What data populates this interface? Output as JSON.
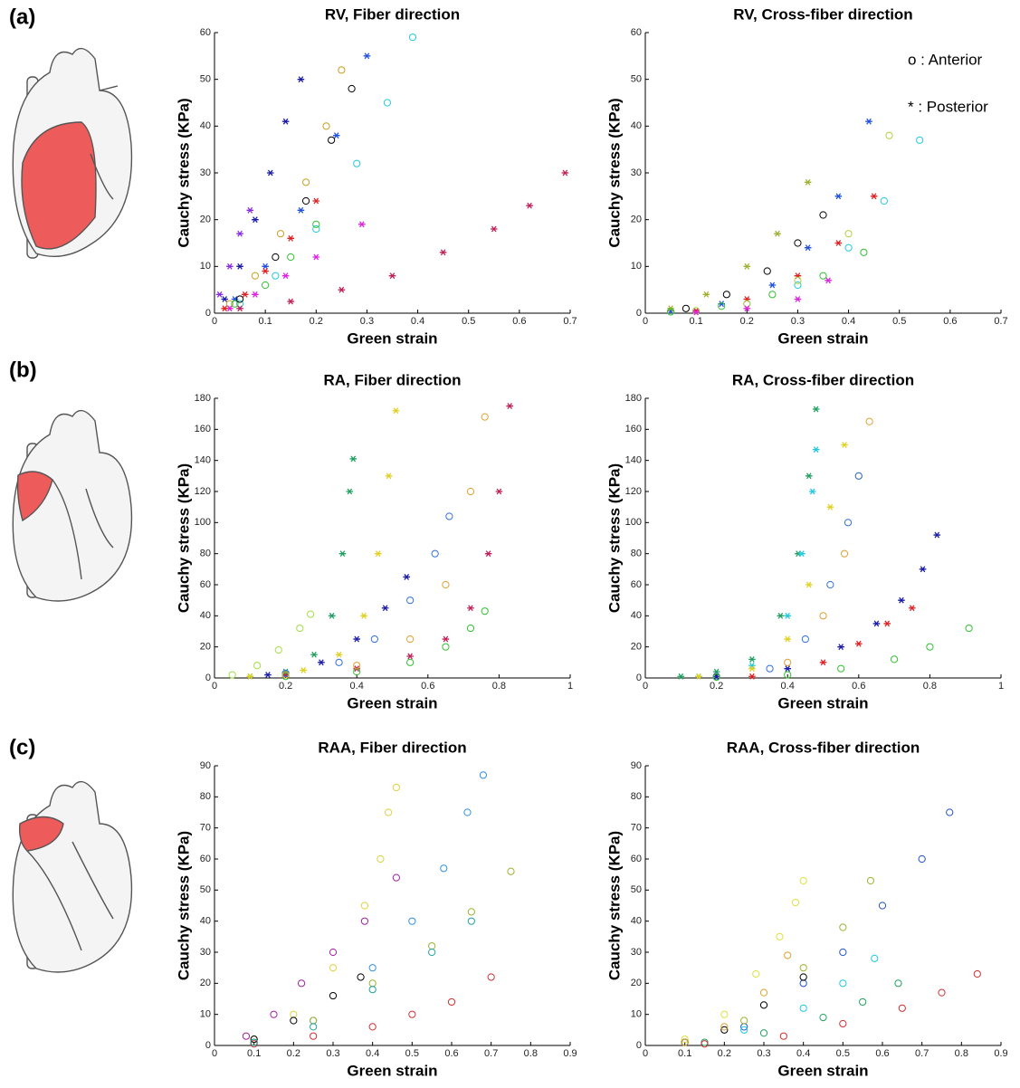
{
  "panel_labels": [
    "(a)",
    "(b)",
    "(c)"
  ],
  "chart_data": [
    {
      "type": "scatter",
      "title": "RV, Fiber direction",
      "x_label": "Green strain",
      "y_label": "Cauchy stress (KPa)",
      "xlim": [
        0,
        0.7
      ],
      "xticks": [
        0,
        0.1,
        0.2,
        0.3,
        0.4,
        0.5,
        0.6,
        0.7
      ],
      "ylim": [
        0,
        60
      ],
      "yticks": [
        0,
        10,
        20,
        30,
        40,
        50,
        60
      ],
      "series": [
        {
          "marker": "*",
          "color": "#1a1aa8",
          "x": [
            0.02,
            0.05,
            0.08,
            0.11,
            0.14,
            0.17
          ],
          "y": [
            3,
            10,
            20,
            30,
            41,
            50
          ]
        },
        {
          "marker": "*",
          "color": "#8a2be2",
          "x": [
            0.01,
            0.03,
            0.05,
            0.07
          ],
          "y": [
            4,
            10,
            17,
            22
          ]
        },
        {
          "marker": "o",
          "color": "#c8a020",
          "x": [
            0.03,
            0.08,
            0.13,
            0.18,
            0.22,
            0.25
          ],
          "y": [
            2,
            8,
            17,
            28,
            40,
            52
          ]
        },
        {
          "marker": "o",
          "color": "#20c8e0",
          "x": [
            0.05,
            0.12,
            0.2,
            0.28,
            0.34,
            0.39
          ],
          "y": [
            2,
            8,
            18,
            32,
            45,
            59
          ]
        },
        {
          "marker": "*",
          "color": "#2050e0",
          "x": [
            0.04,
            0.1,
            0.17,
            0.24,
            0.3
          ],
          "y": [
            3,
            10,
            22,
            38,
            55
          ]
        },
        {
          "marker": "o",
          "color": "#30c030",
          "x": [
            0.04,
            0.1,
            0.15,
            0.2
          ],
          "y": [
            2,
            6,
            12,
            19
          ]
        },
        {
          "marker": "*",
          "color": "#e020e0",
          "x": [
            0.03,
            0.08,
            0.14,
            0.2,
            0.29
          ],
          "y": [
            1,
            4,
            8,
            12,
            19
          ]
        },
        {
          "marker": "*",
          "color": "#c0205a",
          "x": [
            0.05,
            0.15,
            0.25,
            0.35,
            0.45,
            0.55,
            0.62,
            0.69
          ],
          "y": [
            1,
            2.5,
            5,
            8,
            13,
            18,
            23,
            30
          ]
        },
        {
          "marker": "*",
          "color": "#e02020",
          "x": [
            0.02,
            0.06,
            0.1,
            0.15,
            0.2
          ],
          "y": [
            1,
            4,
            9,
            16,
            24
          ]
        },
        {
          "marker": "o",
          "color": "#000000",
          "x": [
            0.05,
            0.12,
            0.18,
            0.23,
            0.27
          ],
          "y": [
            3,
            12,
            24,
            37,
            48
          ]
        }
      ]
    },
    {
      "type": "scatter",
      "title": "RV, Cross-fiber direction",
      "x_label": "Green strain",
      "y_label": "Cauchy stress (KPa)",
      "annotations": [
        "o : Anterior",
        "* : Posterior"
      ],
      "xlim": [
        0,
        0.7
      ],
      "xticks": [
        0,
        0.1,
        0.2,
        0.3,
        0.4,
        0.5,
        0.6,
        0.7
      ],
      "ylim": [
        0,
        60
      ],
      "yticks": [
        0,
        10,
        20,
        30,
        40,
        50,
        60
      ],
      "series": [
        {
          "marker": "*",
          "color": "#2050e0",
          "x": [
            0.05,
            0.15,
            0.25,
            0.32,
            0.38,
            0.44
          ],
          "y": [
            0.5,
            2,
            6,
            14,
            25,
            41
          ]
        },
        {
          "marker": "*",
          "color": "#a0b030",
          "x": [
            0.05,
            0.12,
            0.2,
            0.26,
            0.32
          ],
          "y": [
            1,
            4,
            10,
            17,
            28
          ]
        },
        {
          "marker": "o",
          "color": "#20c8e0",
          "x": [
            0.1,
            0.2,
            0.3,
            0.4,
            0.47,
            0.54
          ],
          "y": [
            0.5,
            2,
            6,
            14,
            24,
            37
          ]
        },
        {
          "marker": "o",
          "color": "#30c030",
          "x": [
            0.05,
            0.15,
            0.25,
            0.35,
            0.43
          ],
          "y": [
            0.3,
            1.5,
            4,
            8,
            13
          ]
        },
        {
          "marker": "*",
          "color": "#e02020",
          "x": [
            0.1,
            0.2,
            0.3,
            0.38,
            0.45
          ],
          "y": [
            0.5,
            3,
            8,
            15,
            25
          ]
        },
        {
          "marker": "o",
          "color": "#000000",
          "x": [
            0.08,
            0.16,
            0.24,
            0.3,
            0.35
          ],
          "y": [
            1,
            4,
            9,
            15,
            21
          ]
        },
        {
          "marker": "o",
          "color": "#b0d040",
          "x": [
            0.1,
            0.2,
            0.3,
            0.4,
            0.48
          ],
          "y": [
            0.5,
            2,
            7,
            17,
            38
          ]
        },
        {
          "marker": "*",
          "color": "#e020e0",
          "x": [
            0.1,
            0.2,
            0.3,
            0.36
          ],
          "y": [
            0.2,
            1,
            3,
            7
          ]
        }
      ]
    },
    {
      "type": "scatter",
      "title": "RA, Fiber direction",
      "x_label": "Green strain",
      "y_label": "Cauchy stress (KPa)",
      "xlim": [
        0,
        1
      ],
      "xticks": [
        0,
        0.2,
        0.4,
        0.6,
        0.8,
        1
      ],
      "ylim": [
        0,
        180
      ],
      "yticks": [
        0,
        20,
        40,
        60,
        80,
        100,
        120,
        140,
        160,
        180
      ],
      "series": [
        {
          "marker": "*",
          "color": "#20a060",
          "x": [
            0.1,
            0.2,
            0.28,
            0.33,
            0.36,
            0.38,
            0.39
          ],
          "y": [
            1,
            4,
            15,
            40,
            80,
            120,
            141
          ]
        },
        {
          "marker": "*",
          "color": "#e0d020",
          "x": [
            0.1,
            0.25,
            0.35,
            0.42,
            0.46,
            0.49,
            0.51
          ],
          "y": [
            1,
            5,
            15,
            40,
            80,
            130,
            172
          ]
        },
        {
          "marker": "*",
          "color": "#c0205a",
          "x": [
            0.2,
            0.4,
            0.55,
            0.65,
            0.72,
            0.77,
            0.8,
            0.83
          ],
          "y": [
            2,
            6,
            14,
            25,
            45,
            80,
            120,
            175
          ]
        },
        {
          "marker": "o",
          "color": "#3070e0",
          "x": [
            0.2,
            0.35,
            0.45,
            0.55,
            0.62,
            0.66
          ],
          "y": [
            3,
            10,
            25,
            50,
            80,
            104
          ]
        },
        {
          "marker": "*",
          "color": "#1a1aa8",
          "x": [
            0.15,
            0.3,
            0.4,
            0.48,
            0.54
          ],
          "y": [
            2,
            10,
            25,
            45,
            65
          ]
        },
        {
          "marker": "o",
          "color": "#30c030",
          "x": [
            0.2,
            0.4,
            0.55,
            0.65,
            0.72,
            0.76
          ],
          "y": [
            1,
            4,
            10,
            20,
            32,
            43
          ]
        },
        {
          "marker": "o",
          "color": "#a0e040",
          "x": [
            0.05,
            0.12,
            0.18,
            0.24,
            0.27
          ],
          "y": [
            2,
            8,
            18,
            32,
            41
          ]
        },
        {
          "marker": "o",
          "color": "#e0a030",
          "x": [
            0.2,
            0.4,
            0.55,
            0.65,
            0.72,
            0.76
          ],
          "y": [
            2,
            8,
            25,
            60,
            120,
            168
          ]
        }
      ]
    },
    {
      "type": "scatter",
      "title": "RA, Cross-fiber direction",
      "x_label": "Green strain",
      "y_label": "Cauchy stress (KPa)",
      "xlim": [
        0,
        1
      ],
      "xticks": [
        0,
        0.2,
        0.4,
        0.6,
        0.8,
        1
      ],
      "ylim": [
        0,
        180
      ],
      "yticks": [
        0,
        20,
        40,
        60,
        80,
        100,
        120,
        140,
        160,
        180
      ],
      "series": [
        {
          "marker": "*",
          "color": "#20a060",
          "x": [
            0.1,
            0.2,
            0.3,
            0.38,
            0.43,
            0.46,
            0.48
          ],
          "y": [
            1,
            4,
            12,
            40,
            80,
            130,
            173
          ]
        },
        {
          "marker": "*",
          "color": "#20c8e0",
          "x": [
            0.15,
            0.3,
            0.4,
            0.44,
            0.47,
            0.48
          ],
          "y": [
            1,
            8,
            40,
            80,
            120,
            147
          ]
        },
        {
          "marker": "*",
          "color": "#e0d020",
          "x": [
            0.15,
            0.3,
            0.4,
            0.46,
            0.52,
            0.56
          ],
          "y": [
            1,
            6,
            25,
            60,
            110,
            150
          ]
        },
        {
          "marker": "o",
          "color": "#e0a030",
          "x": [
            0.2,
            0.4,
            0.5,
            0.56,
            0.6,
            0.63
          ],
          "y": [
            1,
            10,
            40,
            80,
            130,
            165
          ]
        },
        {
          "marker": "o",
          "color": "#3070e0",
          "x": [
            0.2,
            0.35,
            0.45,
            0.52,
            0.57,
            0.6
          ],
          "y": [
            1,
            6,
            25,
            60,
            100,
            130
          ]
        },
        {
          "marker": "*",
          "color": "#1a1aa8",
          "x": [
            0.2,
            0.4,
            0.55,
            0.65,
            0.72,
            0.78,
            0.82
          ],
          "y": [
            1,
            6,
            20,
            35,
            50,
            70,
            92
          ]
        },
        {
          "marker": "o",
          "color": "#30c030",
          "x": [
            0.2,
            0.4,
            0.55,
            0.7,
            0.8,
            0.91
          ],
          "y": [
            0.5,
            2,
            6,
            12,
            20,
            32
          ]
        },
        {
          "marker": "*",
          "color": "#e02020",
          "x": [
            0.3,
            0.5,
            0.6,
            0.68,
            0.75
          ],
          "y": [
            1,
            10,
            22,
            35,
            45
          ]
        }
      ]
    },
    {
      "type": "scatter",
      "title": "RAA, Fiber direction",
      "x_label": "Green strain",
      "y_label": "Cauchy stress (KPa)",
      "xlim": [
        0,
        0.9
      ],
      "xticks": [
        0,
        0.1,
        0.2,
        0.3,
        0.4,
        0.5,
        0.6,
        0.7,
        0.8,
        0.9
      ],
      "ylim": [
        0,
        90
      ],
      "yticks": [
        0,
        10,
        20,
        30,
        40,
        50,
        60,
        70,
        80,
        90
      ],
      "series": [
        {
          "marker": "o",
          "color": "#e0d040",
          "x": [
            0.1,
            0.2,
            0.3,
            0.38,
            0.42,
            0.44,
            0.46
          ],
          "y": [
            2,
            10,
            25,
            45,
            60,
            75,
            83
          ]
        },
        {
          "marker": "o",
          "color": "#3090e0",
          "x": [
            0.1,
            0.25,
            0.4,
            0.5,
            0.58,
            0.64,
            0.68
          ],
          "y": [
            1,
            8,
            25,
            40,
            57,
            75,
            87
          ]
        },
        {
          "marker": "o",
          "color": "#a020a0",
          "x": [
            0.08,
            0.15,
            0.22,
            0.3,
            0.38,
            0.46
          ],
          "y": [
            3,
            10,
            20,
            30,
            40,
            54
          ]
        },
        {
          "marker": "o",
          "color": "#a0b030",
          "x": [
            0.1,
            0.25,
            0.4,
            0.55,
            0.65,
            0.75
          ],
          "y": [
            1,
            8,
            20,
            32,
            43,
            56
          ]
        },
        {
          "marker": "o",
          "color": "#d03030",
          "x": [
            0.1,
            0.25,
            0.4,
            0.5,
            0.6,
            0.7
          ],
          "y": [
            0.5,
            3,
            6,
            10,
            14,
            22
          ]
        },
        {
          "marker": "o",
          "color": "#000000",
          "x": [
            0.1,
            0.2,
            0.3,
            0.37
          ],
          "y": [
            2,
            8,
            16,
            22
          ]
        },
        {
          "marker": "o",
          "color": "#20a0a0",
          "x": [
            0.1,
            0.25,
            0.4,
            0.55,
            0.65
          ],
          "y": [
            1,
            6,
            18,
            30,
            40
          ]
        }
      ]
    },
    {
      "type": "scatter",
      "title": "RAA, Cross-fiber direction",
      "x_label": "Green strain",
      "y_label": "Cauchy stress (KPa)",
      "xlim": [
        0,
        0.9
      ],
      "xticks": [
        0,
        0.1,
        0.2,
        0.3,
        0.4,
        0.5,
        0.6,
        0.7,
        0.8,
        0.9
      ],
      "ylim": [
        0,
        90
      ],
      "yticks": [
        0,
        10,
        20,
        30,
        40,
        50,
        60,
        70,
        80,
        90
      ],
      "series": [
        {
          "marker": "o",
          "color": "#e0e040",
          "x": [
            0.1,
            0.2,
            0.28,
            0.34,
            0.38,
            0.4
          ],
          "y": [
            2,
            10,
            23,
            35,
            46,
            53
          ]
        },
        {
          "marker": "o",
          "color": "#2050d0",
          "x": [
            0.1,
            0.25,
            0.4,
            0.5,
            0.6,
            0.7,
            0.77
          ],
          "y": [
            1,
            6,
            20,
            30,
            45,
            60,
            75
          ]
        },
        {
          "marker": "o",
          "color": "#a0b030",
          "x": [
            0.1,
            0.25,
            0.4,
            0.5,
            0.57
          ],
          "y": [
            1,
            8,
            25,
            38,
            53
          ]
        },
        {
          "marker": "o",
          "color": "#20c8e0",
          "x": [
            0.1,
            0.25,
            0.4,
            0.5,
            0.58
          ],
          "y": [
            1,
            5,
            12,
            20,
            28
          ]
        },
        {
          "marker": "o",
          "color": "#20a060",
          "x": [
            0.15,
            0.3,
            0.45,
            0.55,
            0.64
          ],
          "y": [
            1,
            4,
            9,
            14,
            20
          ]
        },
        {
          "marker": "o",
          "color": "#d03030",
          "x": [
            0.15,
            0.35,
            0.5,
            0.65,
            0.75,
            0.84
          ],
          "y": [
            0.5,
            3,
            7,
            12,
            17,
            23
          ]
        },
        {
          "marker": "o",
          "color": "#000000",
          "x": [
            0.1,
            0.2,
            0.3,
            0.4
          ],
          "y": [
            1,
            5,
            13,
            22
          ]
        },
        {
          "marker": "o",
          "color": "#e0a030",
          "x": [
            0.1,
            0.2,
            0.3,
            0.36
          ],
          "y": [
            1,
            6,
            17,
            29
          ]
        }
      ]
    }
  ]
}
